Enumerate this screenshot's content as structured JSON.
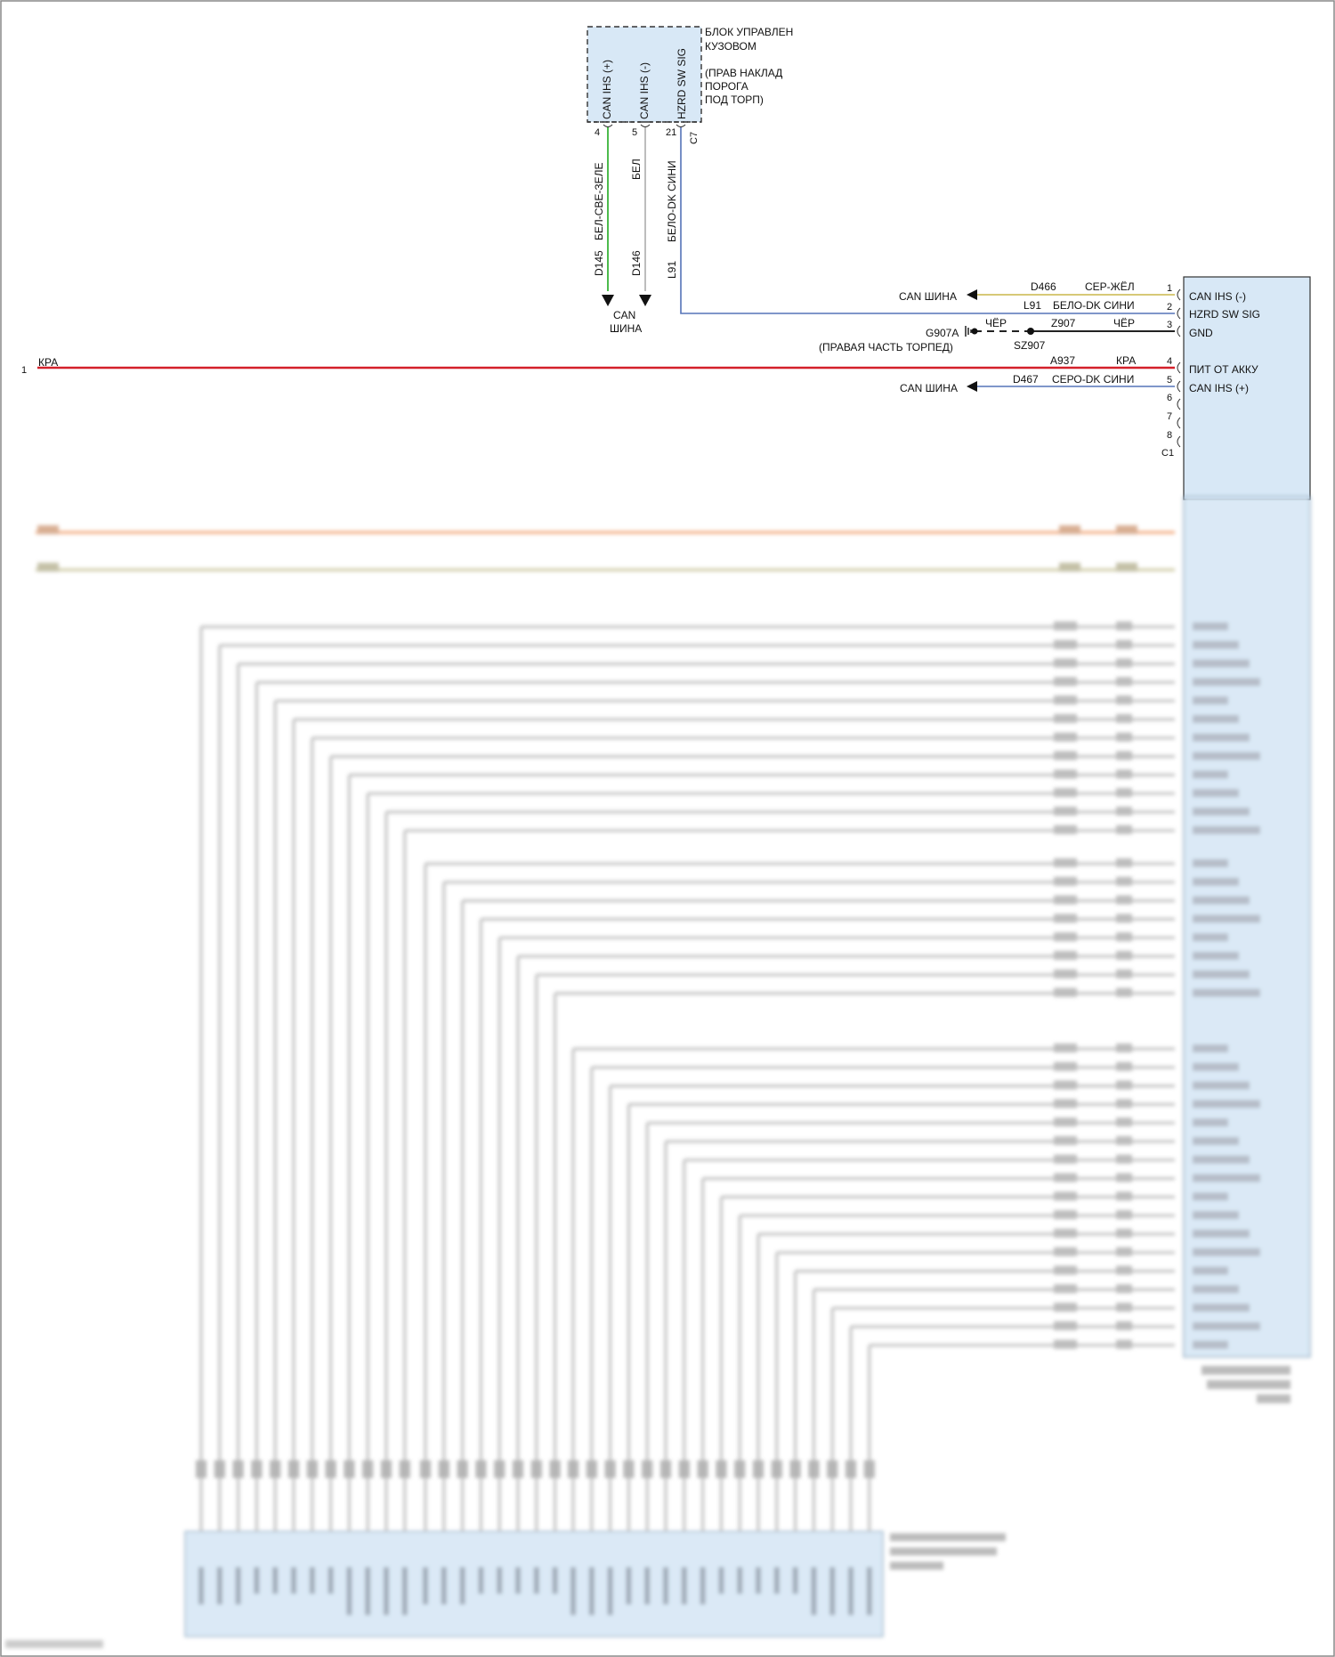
{
  "colors": {
    "box_fill": "#d8e8f6",
    "wire_green": "#4dbb4d",
    "wire_white": "#bdbdbd",
    "wire_blue": "#5573b8",
    "wire_yellow": "#d7c977",
    "wire_red": "#d4202a",
    "wire_black": "#222222",
    "wire_orange": "#f0a070",
    "wire_tan": "#c8c49a",
    "wire_gray": "#c0c0c0"
  },
  "module_top": {
    "title_lines": [
      "БЛОК УПРАВЛЕН",
      "КУЗОВОМ"
    ],
    "location_lines": [
      "(ПРАВ НАКЛАД",
      "ПОРОГА",
      "ПОД ТОРП)"
    ],
    "pins": [
      {
        "name": "CAN IHS (+)",
        "num": "4",
        "circuit": "D145",
        "wire_color": "БЕЛ-СВЕ-ЗЕЛЕ"
      },
      {
        "name": "CAN IHS (-)",
        "num": "5",
        "circuit": "D146",
        "wire_color": "БЕЛ"
      },
      {
        "name": "HZRD SW SIG",
        "num": "21",
        "circuit": "L91",
        "wire_color": "БЕЛО-DK СИНИ"
      }
    ],
    "connector": "C7",
    "can_bus_lines": [
      "CAN",
      "ШИНА"
    ]
  },
  "module_right": {
    "connector": "C1",
    "pins": [
      {
        "num": "1",
        "name": "CAN IHS (-)",
        "circuit": "D466",
        "wire_color": "СЕР-ЖЁЛ"
      },
      {
        "num": "2",
        "name": "HZRD SW SIG",
        "circuit": "L91",
        "wire_color": "БЕЛО-DK СИНИ"
      },
      {
        "num": "3",
        "name": "GND",
        "circuit": "Z907",
        "wire_color": "ЧЁР"
      },
      {
        "num": "4",
        "name": "ПИТ ОТ АККУ",
        "circuit": "A937",
        "wire_color": "КРА"
      },
      {
        "num": "5",
        "name": "CAN IHS (+)",
        "circuit": "D467",
        "wire_color": "СЕРО-DK СИНИ"
      },
      {
        "num": "6",
        "name": "",
        "circuit": "",
        "wire_color": ""
      },
      {
        "num": "7",
        "name": "",
        "circuit": "",
        "wire_color": ""
      },
      {
        "num": "8",
        "name": "",
        "circuit": "",
        "wire_color": ""
      }
    ]
  },
  "can_bus_label": "CAN ШИНА",
  "ground": {
    "name": "G907A",
    "location": "(ПРАВАЯ ЧАСТЬ ТОРПЕД)",
    "wire_color": "ЧЁР",
    "splice": "SZ907"
  },
  "feed": {
    "num": "1",
    "wire_color": "КРА"
  }
}
